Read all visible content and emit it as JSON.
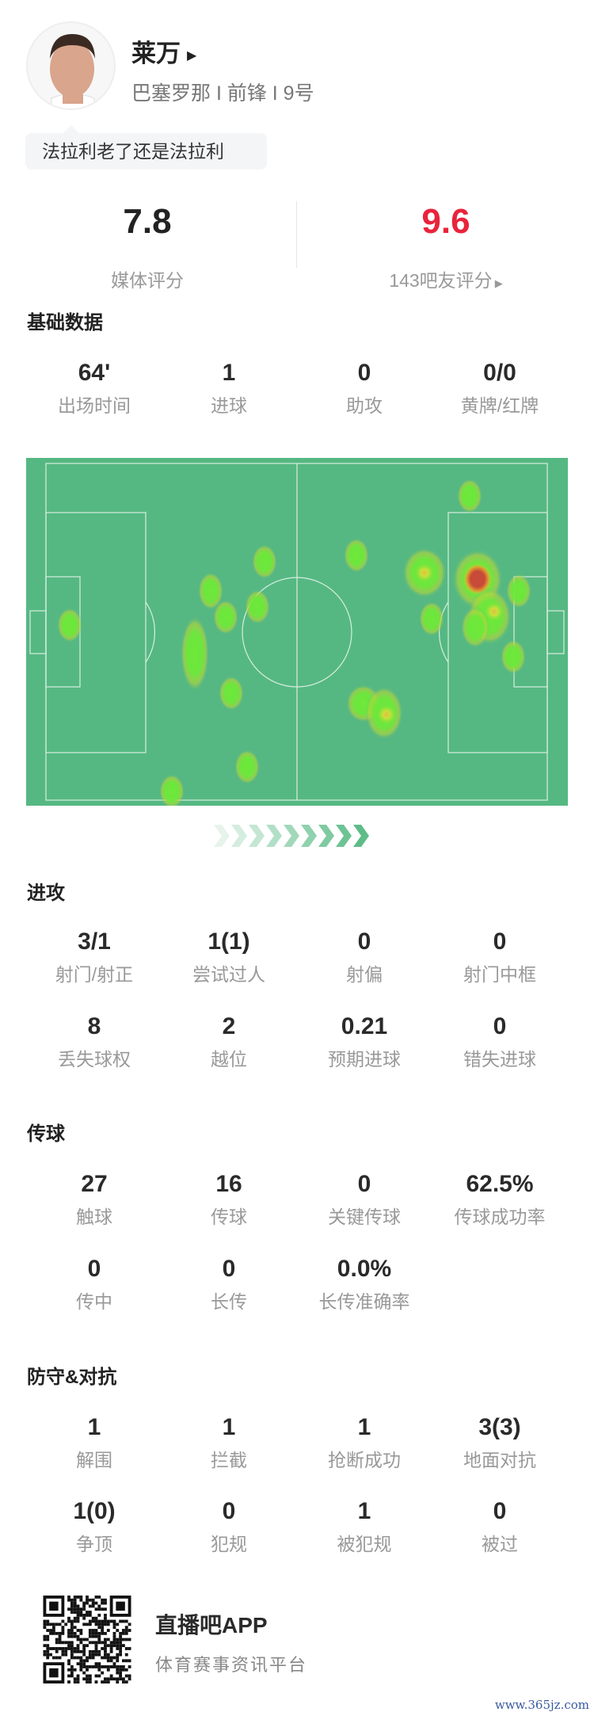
{
  "player": {
    "name": "莱万",
    "info": "巴塞罗那 I 前锋 I 9号",
    "comment": "法拉利老了还是法拉利"
  },
  "ratings": {
    "media": {
      "value": "7.8",
      "label": "媒体评分"
    },
    "fans": {
      "value": "9.6",
      "label": "143吧友评分",
      "color": "#e8243c"
    }
  },
  "sections": {
    "basic": {
      "title": "基础数据",
      "stats": [
        {
          "v": "64'",
          "l": "出场时间"
        },
        {
          "v": "1",
          "l": "进球"
        },
        {
          "v": "0",
          "l": "助攻"
        },
        {
          "v": "0/0",
          "l": "黄牌/红牌"
        }
      ]
    },
    "attack": {
      "title": "进攻",
      "stats": [
        {
          "v": "3/1",
          "l": "射门/射正"
        },
        {
          "v": "1(1)",
          "l": "尝试过人"
        },
        {
          "v": "0",
          "l": "射偏"
        },
        {
          "v": "0",
          "l": "射门中框"
        },
        {
          "v": "8",
          "l": "丢失球权"
        },
        {
          "v": "2",
          "l": "越位"
        },
        {
          "v": "0.21",
          "l": "预期进球"
        },
        {
          "v": "0",
          "l": "错失进球"
        }
      ]
    },
    "passing": {
      "title": "传球",
      "stats": [
        {
          "v": "27",
          "l": "触球"
        },
        {
          "v": "16",
          "l": "传球"
        },
        {
          "v": "0",
          "l": "关键传球"
        },
        {
          "v": "62.5%",
          "l": "传球成功率"
        },
        {
          "v": "0",
          "l": "传中"
        },
        {
          "v": "0",
          "l": "长传"
        },
        {
          "v": "0.0%",
          "l": "长传准确率"
        }
      ]
    },
    "defense": {
      "title": "防守&对抗",
      "stats": [
        {
          "v": "1",
          "l": "解围"
        },
        {
          "v": "1",
          "l": "拦截"
        },
        {
          "v": "1",
          "l": "抢断成功"
        },
        {
          "v": "3(3)",
          "l": "地面对抗"
        },
        {
          "v": "1(0)",
          "l": "争顶"
        },
        {
          "v": "0",
          "l": "犯规"
        },
        {
          "v": "1",
          "l": "被犯规"
        },
        {
          "v": "0",
          "l": "被过"
        }
      ]
    }
  },
  "heatmap": {
    "pitch_color": "#55b882",
    "line_color": "#d8eee0",
    "direction": "attacking-right"
  },
  "footer": {
    "app": "直播吧APP",
    "slogan": "体育赛事资讯平台",
    "watermark": "www.365jz.com"
  }
}
